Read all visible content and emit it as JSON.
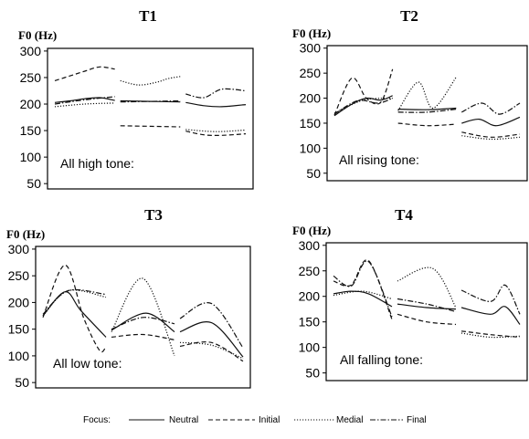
{
  "chart_data": [
    {
      "type": "line",
      "title": "T1",
      "ylabel": "F0 (Hz)",
      "annotation": "All high tone:",
      "ylim": [
        40,
        305
      ],
      "yticks": [
        50,
        100,
        150,
        200,
        250,
        300
      ],
      "segments": 3,
      "series": [
        {
          "name": "Neutral",
          "segments": [
            [
              [
                0,
                203
              ],
              [
                0.25,
                206
              ],
              [
                0.5,
                210
              ],
              [
                0.75,
                212
              ],
              [
                1,
                207
              ]
            ],
            [
              [
                0,
                206
              ],
              [
                0.5,
                205
              ],
              [
                1,
                204
              ]
            ],
            [
              [
                0,
                203
              ],
              [
                0.3,
                197
              ],
              [
                0.6,
                195
              ],
              [
                1,
                199
              ]
            ]
          ]
        },
        {
          "name": "Initial",
          "segments": [
            [
              [
                0,
                244
              ],
              [
                0.25,
                253
              ],
              [
                0.5,
                262
              ],
              [
                0.75,
                270
              ],
              [
                1,
                266
              ]
            ],
            [
              [
                0,
                159
              ],
              [
                0.5,
                158
              ],
              [
                1,
                157
              ]
            ],
            [
              [
                0,
                149
              ],
              [
                0.3,
                142
              ],
              [
                0.6,
                141
              ],
              [
                1,
                144
              ]
            ]
          ]
        },
        {
          "name": "Medial",
          "segments": [
            [
              [
                0,
                195
              ],
              [
                0.5,
                200
              ],
              [
                1,
                202
              ]
            ],
            [
              [
                0,
                244
              ],
              [
                0.3,
                236
              ],
              [
                0.6,
                241
              ],
              [
                0.8,
                248
              ],
              [
                1,
                252
              ]
            ],
            [
              [
                0,
                152
              ],
              [
                0.5,
                148
              ],
              [
                1,
                151
              ]
            ]
          ]
        },
        {
          "name": "Final",
          "segments": [
            [
              [
                0,
                200
              ],
              [
                0.5,
                208
              ],
              [
                1,
                214
              ]
            ],
            [
              [
                0,
                204
              ],
              [
                0.5,
                205
              ],
              [
                1,
                206
              ]
            ],
            [
              [
                0,
                219
              ],
              [
                0.3,
                212
              ],
              [
                0.6,
                228
              ],
              [
                1,
                225
              ]
            ]
          ]
        }
      ]
    },
    {
      "type": "line",
      "title": "T2",
      "ylabel": "F0 (Hz)",
      "annotation": "All rising tone:",
      "ylim": [
        35,
        305
      ],
      "yticks": [
        50,
        100,
        150,
        200,
        250,
        300
      ],
      "segments": 3,
      "series": [
        {
          "name": "Neutral",
          "segments": [
            [
              [
                0,
                165
              ],
              [
                0.3,
                188
              ],
              [
                0.55,
                200
              ],
              [
                0.8,
                196
              ],
              [
                1,
                205
              ]
            ],
            [
              [
                0,
                178
              ],
              [
                0.5,
                177
              ],
              [
                1,
                180
              ]
            ],
            [
              [
                0,
                150
              ],
              [
                0.3,
                158
              ],
              [
                0.6,
                145
              ],
              [
                1,
                162
              ]
            ]
          ]
        },
        {
          "name": "Initial",
          "segments": [
            [
              [
                0,
                166
              ],
              [
                0.3,
                240
              ],
              [
                0.55,
                200
              ],
              [
                0.8,
                192
              ],
              [
                1,
                258
              ]
            ],
            [
              [
                0,
                150
              ],
              [
                0.5,
                145
              ],
              [
                1,
                148
              ]
            ],
            [
              [
                0,
                132
              ],
              [
                0.5,
                122
              ],
              [
                1,
                128
              ]
            ]
          ]
        },
        {
          "name": "Medial",
          "segments": [
            [
              [
                0,
                170
              ],
              [
                0.5,
                196
              ],
              [
                1,
                200
              ]
            ],
            [
              [
                0,
                175
              ],
              [
                0.35,
                232
              ],
              [
                0.6,
                180
              ],
              [
                1,
                242
              ]
            ],
            [
              [
                0,
                125
              ],
              [
                0.5,
                118
              ],
              [
                1,
                122
              ]
            ]
          ]
        },
        {
          "name": "Final",
          "segments": [
            [
              [
                0,
                168
              ],
              [
                0.4,
                195
              ],
              [
                0.75,
                190
              ],
              [
                1,
                200
              ]
            ],
            [
              [
                0,
                172
              ],
              [
                0.5,
                172
              ],
              [
                1,
                178
              ]
            ],
            [
              [
                0,
                172
              ],
              [
                0.35,
                190
              ],
              [
                0.65,
                168
              ],
              [
                1,
                190
              ]
            ]
          ]
        }
      ]
    },
    {
      "type": "line",
      "title": "T3",
      "ylabel": "F0 (Hz)",
      "annotation": "All low tone:",
      "ylim": [
        40,
        305
      ],
      "yticks": [
        50,
        100,
        150,
        200,
        250,
        300
      ],
      "segments": 3,
      "series": [
        {
          "name": "Neutral",
          "segments": [
            [
              [
                0,
                175
              ],
              [
                0.35,
                220
              ],
              [
                0.6,
                185
              ],
              [
                1,
                135
              ]
            ],
            [
              [
                0,
                148
              ],
              [
                0.55,
                180
              ],
              [
                1,
                145
              ]
            ],
            [
              [
                0,
                145
              ],
              [
                0.5,
                162
              ],
              [
                1,
                98
              ]
            ]
          ]
        },
        {
          "name": "Initial",
          "segments": [
            [
              [
                0,
                172
              ],
              [
                0.35,
                270
              ],
              [
                0.65,
                170
              ],
              [
                0.9,
                110
              ],
              [
                1,
                118
              ]
            ],
            [
              [
                0,
                135
              ],
              [
                0.5,
                140
              ],
              [
                1,
                130
              ]
            ],
            [
              [
                0,
                118
              ],
              [
                0.5,
                125
              ],
              [
                1,
                90
              ]
            ]
          ]
        },
        {
          "name": "Medial",
          "segments": [
            [
              [
                0,
                175
              ],
              [
                0.4,
                222
              ],
              [
                1,
                210
              ]
            ],
            [
              [
                0,
                145
              ],
              [
                0.5,
                245
              ],
              [
                1,
                100
              ]
            ],
            [
              [
                0,
                125
              ],
              [
                0.5,
                120
              ],
              [
                1,
                95
              ]
            ]
          ]
        },
        {
          "name": "Final",
          "segments": [
            [
              [
                0,
                178
              ],
              [
                0.4,
                222
              ],
              [
                1,
                215
              ]
            ],
            [
              [
                0,
                150
              ],
              [
                0.5,
                172
              ],
              [
                1,
                160
              ]
            ],
            [
              [
                0,
                170
              ],
              [
                0.5,
                198
              ],
              [
                1,
                115
              ]
            ]
          ]
        }
      ]
    },
    {
      "type": "line",
      "title": "T4",
      "ylabel": "F0 (Hz)",
      "annotation": "All falling tone:",
      "ylim": [
        35,
        305
      ],
      "yticks": [
        50,
        100,
        150,
        200,
        250,
        300
      ],
      "segments": 3,
      "series": [
        {
          "name": "Neutral",
          "segments": [
            [
              [
                0,
                205
              ],
              [
                0.3,
                210
              ],
              [
                0.6,
                205
              ],
              [
                1,
                180
              ]
            ],
            [
              [
                0,
                185
              ],
              [
                0.5,
                178
              ],
              [
                1,
                175
              ]
            ],
            [
              [
                0,
                178
              ],
              [
                0.5,
                165
              ],
              [
                0.75,
                180
              ],
              [
                1,
                145
              ]
            ]
          ]
        },
        {
          "name": "Initial",
          "segments": [
            [
              [
                0,
                230
              ],
              [
                0.3,
                222
              ],
              [
                0.6,
                270
              ],
              [
                1,
                155
              ]
            ],
            [
              [
                0,
                165
              ],
              [
                0.5,
                150
              ],
              [
                1,
                145
              ]
            ],
            [
              [
                0,
                132
              ],
              [
                0.5,
                125
              ],
              [
                1,
                120
              ]
            ]
          ]
        },
        {
          "name": "Medial",
          "segments": [
            [
              [
                0,
                202
              ],
              [
                0.5,
                210
              ],
              [
                1,
                195
              ]
            ],
            [
              [
                0,
                230
              ],
              [
                0.6,
                255
              ],
              [
                1,
                178
              ]
            ],
            [
              [
                0,
                128
              ],
              [
                0.5,
                120
              ],
              [
                1,
                122
              ]
            ]
          ]
        },
        {
          "name": "Final",
          "segments": [
            [
              [
                0,
                240
              ],
              [
                0.3,
                220
              ],
              [
                0.6,
                268
              ],
              [
                1,
                160
              ]
            ],
            [
              [
                0,
                195
              ],
              [
                0.5,
                185
              ],
              [
                1,
                170
              ]
            ],
            [
              [
                0,
                212
              ],
              [
                0.5,
                190
              ],
              [
                0.75,
                222
              ],
              [
                1,
                165
              ]
            ]
          ]
        }
      ]
    }
  ],
  "legend": {
    "label": "Focus:",
    "items": [
      {
        "name": "Neutral",
        "style": "solid"
      },
      {
        "name": "Initial",
        "style": "dashed"
      },
      {
        "name": "Medial",
        "style": "dotted"
      },
      {
        "name": "Final",
        "style": "dashdot"
      }
    ]
  }
}
